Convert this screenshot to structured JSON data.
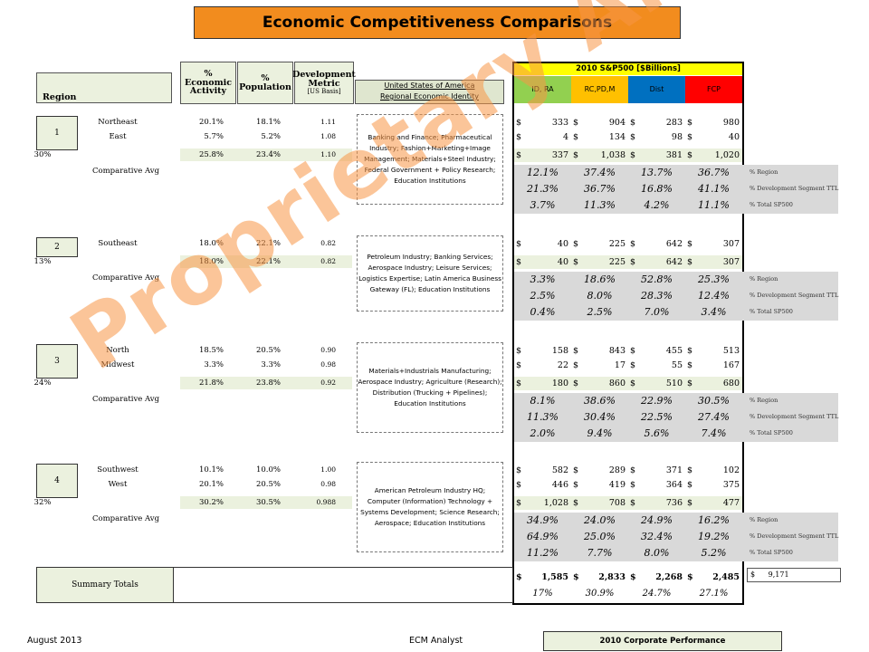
{
  "title": "Economic Competitiveness Comparisons",
  "headers": {
    "region": "Region",
    "econ": "% Economic Activity",
    "pop": "% Population",
    "dev": "Development Metric",
    "dev_sub": "[US Basis]",
    "usa_line1": "United States of America",
    "usa_line2": "Regional Economic Identity"
  },
  "sp500": {
    "title": "2010  S&P500     [$Billions]",
    "columns": [
      "ID, RA",
      "RC,PD,M",
      "Dist",
      "FCP"
    ],
    "column_colors": [
      "#92d050",
      "#ffc000",
      "#0070c0",
      "#ff0000"
    ]
  },
  "side_labels": [
    "% Region",
    "% Development Segment TTL",
    "% Total SP500"
  ],
  "comparative_label": "Comparative Avg",
  "regions": [
    {
      "num": "1",
      "share": "30%",
      "subs": [
        {
          "name": "Northeast",
          "econ": "20.1%",
          "pop": "18.1%",
          "dev": "1.11",
          "vals": [
            "333",
            "904",
            "283",
            "980"
          ]
        },
        {
          "name": "East",
          "econ": "5.7%",
          "pop": "5.2%",
          "dev": "1.08",
          "vals": [
            "4",
            "134",
            "98",
            "40"
          ]
        }
      ],
      "total": {
        "econ": "25.8%",
        "pop": "23.4%",
        "dev": "1.10",
        "vals": [
          "337",
          "1,038",
          "381",
          "1,020"
        ]
      },
      "identity": "Banking and Finance; Pharmaceutical Industry; Fashion+Marketing+Image Management; Materials+Steel Industry; Federal Government + Policy Research; Education Institutions",
      "pct": [
        [
          "12.1%",
          "37.4%",
          "13.7%",
          "36.7%"
        ],
        [
          "21.3%",
          "36.7%",
          "16.8%",
          "41.1%"
        ],
        [
          "3.7%",
          "11.3%",
          "4.2%",
          "11.1%"
        ]
      ]
    },
    {
      "num": "2",
      "share": "13%",
      "subs": [
        {
          "name": "Southeast",
          "econ": "18.0%",
          "pop": "22.1%",
          "dev": "0.82",
          "vals": [
            "40",
            "225",
            "642",
            "307"
          ]
        }
      ],
      "total": {
        "econ": "18.0%",
        "pop": "22.1%",
        "dev": "0.82",
        "vals": [
          "40",
          "225",
          "642",
          "307"
        ]
      },
      "identity": "Petroleum Industry; Banking Services; Aerospace Industry; Leisure Services; Logistics Expertise; Latin America Business Gateway (FL); Education Institutions",
      "pct": [
        [
          "3.3%",
          "18.6%",
          "52.8%",
          "25.3%"
        ],
        [
          "2.5%",
          "8.0%",
          "28.3%",
          "12.4%"
        ],
        [
          "0.4%",
          "2.5%",
          "7.0%",
          "3.4%"
        ]
      ]
    },
    {
      "num": "3",
      "share": "24%",
      "subs": [
        {
          "name": "North",
          "econ": "18.5%",
          "pop": "20.5%",
          "dev": "0.90",
          "vals": [
            "158",
            "843",
            "455",
            "513"
          ]
        },
        {
          "name": "Midwest",
          "econ": "3.3%",
          "pop": "3.3%",
          "dev": "0.98",
          "vals": [
            "22",
            "17",
            "55",
            "167"
          ]
        }
      ],
      "total": {
        "econ": "21.8%",
        "pop": "23.8%",
        "dev": "0.92",
        "vals": [
          "180",
          "860",
          "510",
          "680"
        ]
      },
      "identity": "Materials+Industrials Manufacturing; Aerospace Industry; Agriculture (Research); Distribution (Trucking + Pipelines); Education Institutions",
      "pct": [
        [
          "8.1%",
          "38.6%",
          "22.9%",
          "30.5%"
        ],
        [
          "11.3%",
          "30.4%",
          "22.5%",
          "27.4%"
        ],
        [
          "2.0%",
          "9.4%",
          "5.6%",
          "7.4%"
        ]
      ]
    },
    {
      "num": "4",
      "share": "32%",
      "subs": [
        {
          "name": "Southwest",
          "econ": "10.1%",
          "pop": "10.0%",
          "dev": "1.00",
          "vals": [
            "582",
            "289",
            "371",
            "102"
          ]
        },
        {
          "name": "West",
          "econ": "20.1%",
          "pop": "20.5%",
          "dev": "0.98",
          "vals": [
            "446",
            "419",
            "364",
            "375"
          ]
        }
      ],
      "total": {
        "econ": "30.2%",
        "pop": "30.5%",
        "dev": "0.988",
        "vals": [
          "1,028",
          "708",
          "736",
          "477"
        ]
      },
      "identity": "American Petroleum Industry HQ; Computer (Information) Technology + Systems Development; Science Research; Aerospace; Education Institutions",
      "pct": [
        [
          "34.9%",
          "24.0%",
          "24.9%",
          "16.2%"
        ],
        [
          "64.9%",
          "25.0%",
          "32.4%",
          "19.2%"
        ],
        [
          "11.2%",
          "7.7%",
          "8.0%",
          "5.2%"
        ]
      ]
    }
  ],
  "summary": {
    "label": "Summary Totals",
    "vals": [
      "1,585",
      "2,833",
      "2,268",
      "2,485"
    ],
    "grand_total": "9,171",
    "pcts": [
      "17%",
      "30.9%",
      "24.7%",
      "27.1%"
    ]
  },
  "currency": "$",
  "footer": {
    "date": "August  2013",
    "analyst": "ECM Analyst",
    "box": "2010 Corporate Performance"
  },
  "watermark": "Proprietary Analyses"
}
